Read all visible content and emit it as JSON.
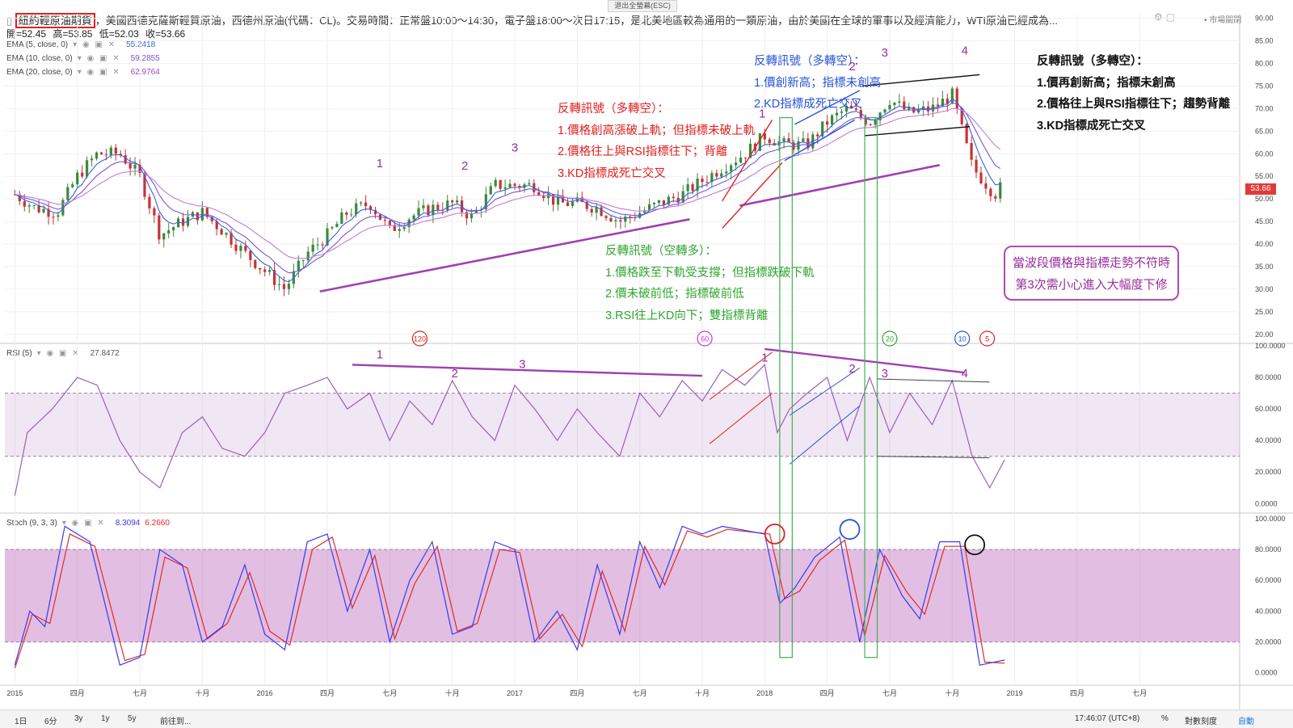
{
  "window": {
    "exit_fullscreen": "退出全螢幕(ESC)",
    "market_status": "• 市場關閉"
  },
  "header": {
    "symbol_name": "紐約輕原油期貨",
    "description": "，美國西德克薩斯輕質原油，西德州原油(代碼：CL)。交易時間：正常盤10:00～14:30，電子盤18:00～次日17:15，是北美地區較為通用的一類原油，由於美國在全球的軍事以及經濟能力，WTI原油已經成為...",
    "ohlc": {
      "open": "開=52.45",
      "high": "高=53.85",
      "low": "低=52.03",
      "close": "收=53.66"
    }
  },
  "indicators": {
    "ema5": {
      "label": "EMA (5, close, 0)",
      "value": "55.2418",
      "color": "#3a63d8"
    },
    "ema10": {
      "label": "EMA (10, close, 0)",
      "value": "59.2855",
      "color": "#7a55d6"
    },
    "ema20": {
      "label": "EMA (20, close, 0)",
      "value": "62.9764",
      "color": "#a246c8"
    },
    "rsi": {
      "label": "RSI (5)",
      "value": "27.8472",
      "color": "#9a60b8"
    },
    "stoch": {
      "label": "Stoch (9, 3, 3)",
      "k": "8.3094",
      "d": "6.2660",
      "k_color": "#3a3af0",
      "d_color": "#e02a2a"
    }
  },
  "price_tag": "53.66",
  "annotations": {
    "note_red": {
      "title": "反轉訊號（多轉空）：",
      "lines": [
        "1.價格創高漲破上軌；但指標未破上軌",
        "2.價格往上與RSI指標往下；背離",
        "3.KD指標成死亡交叉"
      ],
      "color": "#e02020"
    },
    "note_blue": {
      "title": "反轉訊號（多轉空）：",
      "lines": [
        "1.價創新高；指標未創高",
        "2.KD指標成死亡交叉"
      ],
      "color": "#2a55d8"
    },
    "note_black": {
      "title": "反轉訊號（多轉空）：",
      "lines": [
        "1.價再創新高；指標未創高",
        "2.價格往上與RSI指標往下；趨勢背離",
        "3.KD指標成死亡交叉"
      ],
      "color": "#111111"
    },
    "note_green": {
      "title": "反轉訊號（空轉多）：",
      "lines": [
        "1.價格跌至下軌受支撐；但指標跌破下軌",
        "2.價未破前低；指標破前低",
        "3.RSI往上KD向下；雙指標背離"
      ],
      "color": "#2fa62f"
    },
    "callout": {
      "lines": [
        "當波段價格與指標走勢不符時",
        "第3次需小心進入大幅度下修"
      ]
    },
    "wave_numbers": [
      "1",
      "2",
      "3",
      "4"
    ],
    "cycle_markers": [
      "120",
      "60",
      "20",
      "10",
      "5"
    ]
  },
  "bottom_bar": {
    "ranges": [
      "1日",
      "6分",
      "3y",
      "1y",
      "5y"
    ],
    "goto": "前往到...",
    "clock": "17:46:07 (UTC+8)",
    "pct": "%",
    "log": "對數刻度",
    "auto": "自動"
  },
  "chart_data": [
    {
      "type": "candlestick",
      "title": "紐約輕原油期貨",
      "x_axis_labels": [
        "2015",
        "四月",
        "七月",
        "十月",
        "2016",
        "四月",
        "七月",
        "十月",
        "2017",
        "四月",
        "七月",
        "十月",
        "2018",
        "四月",
        "七月",
        "十月",
        "2019",
        "四月",
        "七月"
      ],
      "y_ticks": [
        "90.00",
        "85.00",
        "80.00",
        "75.00",
        "70.00",
        "65.00",
        "60.00",
        "55.00",
        "50.00",
        "45.00",
        "40.00",
        "35.00",
        "30.00",
        "25.00",
        "20.00"
      ],
      "ylim": [
        18,
        91
      ],
      "close_path": [
        [
          2015.0,
          51
        ],
        [
          2015.08,
          48
        ],
        [
          2015.17,
          47
        ],
        [
          2015.25,
          55
        ],
        [
          2015.33,
          60
        ],
        [
          2015.42,
          60
        ],
        [
          2015.5,
          55
        ],
        [
          2015.58,
          42
        ],
        [
          2015.67,
          45
        ],
        [
          2015.75,
          47
        ],
        [
          2015.83,
          43
        ],
        [
          2015.92,
          38
        ],
        [
          2016.0,
          34
        ],
        [
          2016.08,
          30
        ],
        [
          2016.17,
          38
        ],
        [
          2016.25,
          42
        ],
        [
          2016.33,
          47
        ],
        [
          2016.42,
          49
        ],
        [
          2016.5,
          43
        ],
        [
          2016.58,
          46
        ],
        [
          2016.67,
          48
        ],
        [
          2016.75,
          49
        ],
        [
          2016.83,
          46
        ],
        [
          2016.92,
          53
        ],
        [
          2017.0,
          53
        ],
        [
          2017.08,
          53
        ],
        [
          2017.17,
          49
        ],
        [
          2017.25,
          49
        ],
        [
          2017.33,
          48
        ],
        [
          2017.42,
          45
        ],
        [
          2017.5,
          47
        ],
        [
          2017.58,
          49
        ],
        [
          2017.67,
          51
        ],
        [
          2017.75,
          54
        ],
        [
          2017.83,
          57
        ],
        [
          2017.92,
          60
        ],
        [
          2018.0,
          64
        ],
        [
          2018.08,
          62
        ],
        [
          2018.17,
          62
        ],
        [
          2018.25,
          67
        ],
        [
          2018.33,
          70
        ],
        [
          2018.42,
          67
        ],
        [
          2018.5,
          72
        ],
        [
          2018.58,
          69
        ],
        [
          2018.67,
          70
        ],
        [
          2018.75,
          73
        ],
        [
          2018.83,
          57
        ],
        [
          2018.92,
          51
        ],
        [
          2018.96,
          53.66
        ]
      ],
      "ema_last": {
        "ema5": 55.2418,
        "ema10": 59.2855,
        "ema20": 62.9764
      }
    },
    {
      "type": "line",
      "title": "RSI (5)",
      "y_ticks": [
        "100.0000",
        "80.0000",
        "60.0000",
        "40.0000",
        "20.0000",
        "0.0000"
      ],
      "ylim": [
        -6,
        100
      ],
      "bands": [
        30,
        70
      ],
      "path": [
        [
          2015.0,
          5
        ],
        [
          2015.05,
          45
        ],
        [
          2015.15,
          60
        ],
        [
          2015.25,
          80
        ],
        [
          2015.33,
          75
        ],
        [
          2015.42,
          40
        ],
        [
          2015.5,
          20
        ],
        [
          2015.58,
          10
        ],
        [
          2015.67,
          45
        ],
        [
          2015.75,
          55
        ],
        [
          2015.83,
          35
        ],
        [
          2015.92,
          30
        ],
        [
          2016.0,
          45
        ],
        [
          2016.08,
          70
        ],
        [
          2016.17,
          75
        ],
        [
          2016.25,
          80
        ],
        [
          2016.33,
          60
        ],
        [
          2016.42,
          70
        ],
        [
          2016.5,
          40
        ],
        [
          2016.58,
          65
        ],
        [
          2016.67,
          50
        ],
        [
          2016.75,
          78
        ],
        [
          2016.83,
          55
        ],
        [
          2016.92,
          40
        ],
        [
          2017.0,
          75
        ],
        [
          2017.08,
          60
        ],
        [
          2017.17,
          40
        ],
        [
          2017.25,
          60
        ],
        [
          2017.33,
          45
        ],
        [
          2017.42,
          30
        ],
        [
          2017.5,
          70
        ],
        [
          2017.58,
          55
        ],
        [
          2017.67,
          78
        ],
        [
          2017.75,
          65
        ],
        [
          2017.83,
          85
        ],
        [
          2017.92,
          75
        ],
        [
          2018.0,
          88
        ],
        [
          2018.05,
          45
        ],
        [
          2018.1,
          60
        ],
        [
          2018.17,
          70
        ],
        [
          2018.25,
          80
        ],
        [
          2018.33,
          40
        ],
        [
          2018.42,
          80
        ],
        [
          2018.5,
          45
        ],
        [
          2018.58,
          70
        ],
        [
          2018.67,
          50
        ],
        [
          2018.75,
          78
        ],
        [
          2018.83,
          30
        ],
        [
          2018.9,
          10
        ],
        [
          2018.96,
          27.85
        ]
      ]
    },
    {
      "type": "line",
      "title": "Stoch (9, 3, 3)",
      "y_ticks": [
        "100.0000",
        "80.0000",
        "60.0000",
        "40.0000",
        "20.0000",
        "0.0000"
      ],
      "ylim": [
        -8,
        102
      ],
      "bands": [
        20,
        80
      ],
      "series": [
        {
          "name": "%K",
          "values": [
            [
              2015.0,
              5
            ],
            [
              2015.06,
              40
            ],
            [
              2015.12,
              30
            ],
            [
              2015.2,
              95
            ],
            [
              2015.3,
              85
            ],
            [
              2015.42,
              5
            ],
            [
              2015.5,
              10
            ],
            [
              2015.58,
              80
            ],
            [
              2015.67,
              70
            ],
            [
              2015.75,
              20
            ],
            [
              2015.83,
              30
            ],
            [
              2015.92,
              70
            ],
            [
              2016.0,
              25
            ],
            [
              2016.08,
              15
            ],
            [
              2016.17,
              85
            ],
            [
              2016.25,
              90
            ],
            [
              2016.33,
              40
            ],
            [
              2016.42,
              80
            ],
            [
              2016.5,
              20
            ],
            [
              2016.58,
              60
            ],
            [
              2016.67,
              85
            ],
            [
              2016.75,
              25
            ],
            [
              2016.83,
              30
            ],
            [
              2016.92,
              85
            ],
            [
              2017.0,
              80
            ],
            [
              2017.08,
              20
            ],
            [
              2017.17,
              40
            ],
            [
              2017.25,
              15
            ],
            [
              2017.33,
              70
            ],
            [
              2017.42,
              25
            ],
            [
              2017.5,
              85
            ],
            [
              2017.58,
              55
            ],
            [
              2017.67,
              95
            ],
            [
              2017.75,
              90
            ],
            [
              2017.83,
              95
            ],
            [
              2018.0,
              90
            ],
            [
              2018.06,
              45
            ],
            [
              2018.12,
              55
            ],
            [
              2018.2,
              75
            ],
            [
              2018.3,
              88
            ],
            [
              2018.38,
              20
            ],
            [
              2018.46,
              80
            ],
            [
              2018.55,
              50
            ],
            [
              2018.62,
              35
            ],
            [
              2018.7,
              85
            ],
            [
              2018.78,
              85
            ],
            [
              2018.86,
              5
            ],
            [
              2018.96,
              8.31
            ]
          ]
        },
        {
          "name": "%D",
          "values": [
            [
              2015.0,
              3
            ],
            [
              2015.07,
              38
            ],
            [
              2015.14,
              32
            ],
            [
              2015.22,
              90
            ],
            [
              2015.32,
              82
            ],
            [
              2015.44,
              8
            ],
            [
              2015.52,
              12
            ],
            [
              2015.6,
              75
            ],
            [
              2015.69,
              68
            ],
            [
              2015.77,
              22
            ],
            [
              2015.85,
              32
            ],
            [
              2015.94,
              65
            ],
            [
              2016.02,
              27
            ],
            [
              2016.1,
              18
            ],
            [
              2016.19,
              80
            ],
            [
              2016.27,
              88
            ],
            [
              2016.35,
              42
            ],
            [
              2016.44,
              76
            ],
            [
              2016.52,
              22
            ],
            [
              2016.6,
              58
            ],
            [
              2016.69,
              82
            ],
            [
              2016.77,
              27
            ],
            [
              2016.85,
              32
            ],
            [
              2016.94,
              80
            ],
            [
              2017.02,
              78
            ],
            [
              2017.1,
              22
            ],
            [
              2017.19,
              38
            ],
            [
              2017.27,
              17
            ],
            [
              2017.35,
              66
            ],
            [
              2017.44,
              27
            ],
            [
              2017.52,
              82
            ],
            [
              2017.6,
              57
            ],
            [
              2017.69,
              92
            ],
            [
              2017.77,
              88
            ],
            [
              2017.85,
              93
            ],
            [
              2018.02,
              90
            ],
            [
              2018.08,
              48
            ],
            [
              2018.14,
              53
            ],
            [
              2018.22,
              73
            ],
            [
              2018.32,
              86
            ],
            [
              2018.4,
              24
            ],
            [
              2018.48,
              76
            ],
            [
              2018.57,
              52
            ],
            [
              2018.64,
              38
            ],
            [
              2018.72,
              82
            ],
            [
              2018.8,
              82
            ],
            [
              2018.88,
              7
            ],
            [
              2018.96,
              6.27
            ]
          ]
        }
      ]
    }
  ]
}
